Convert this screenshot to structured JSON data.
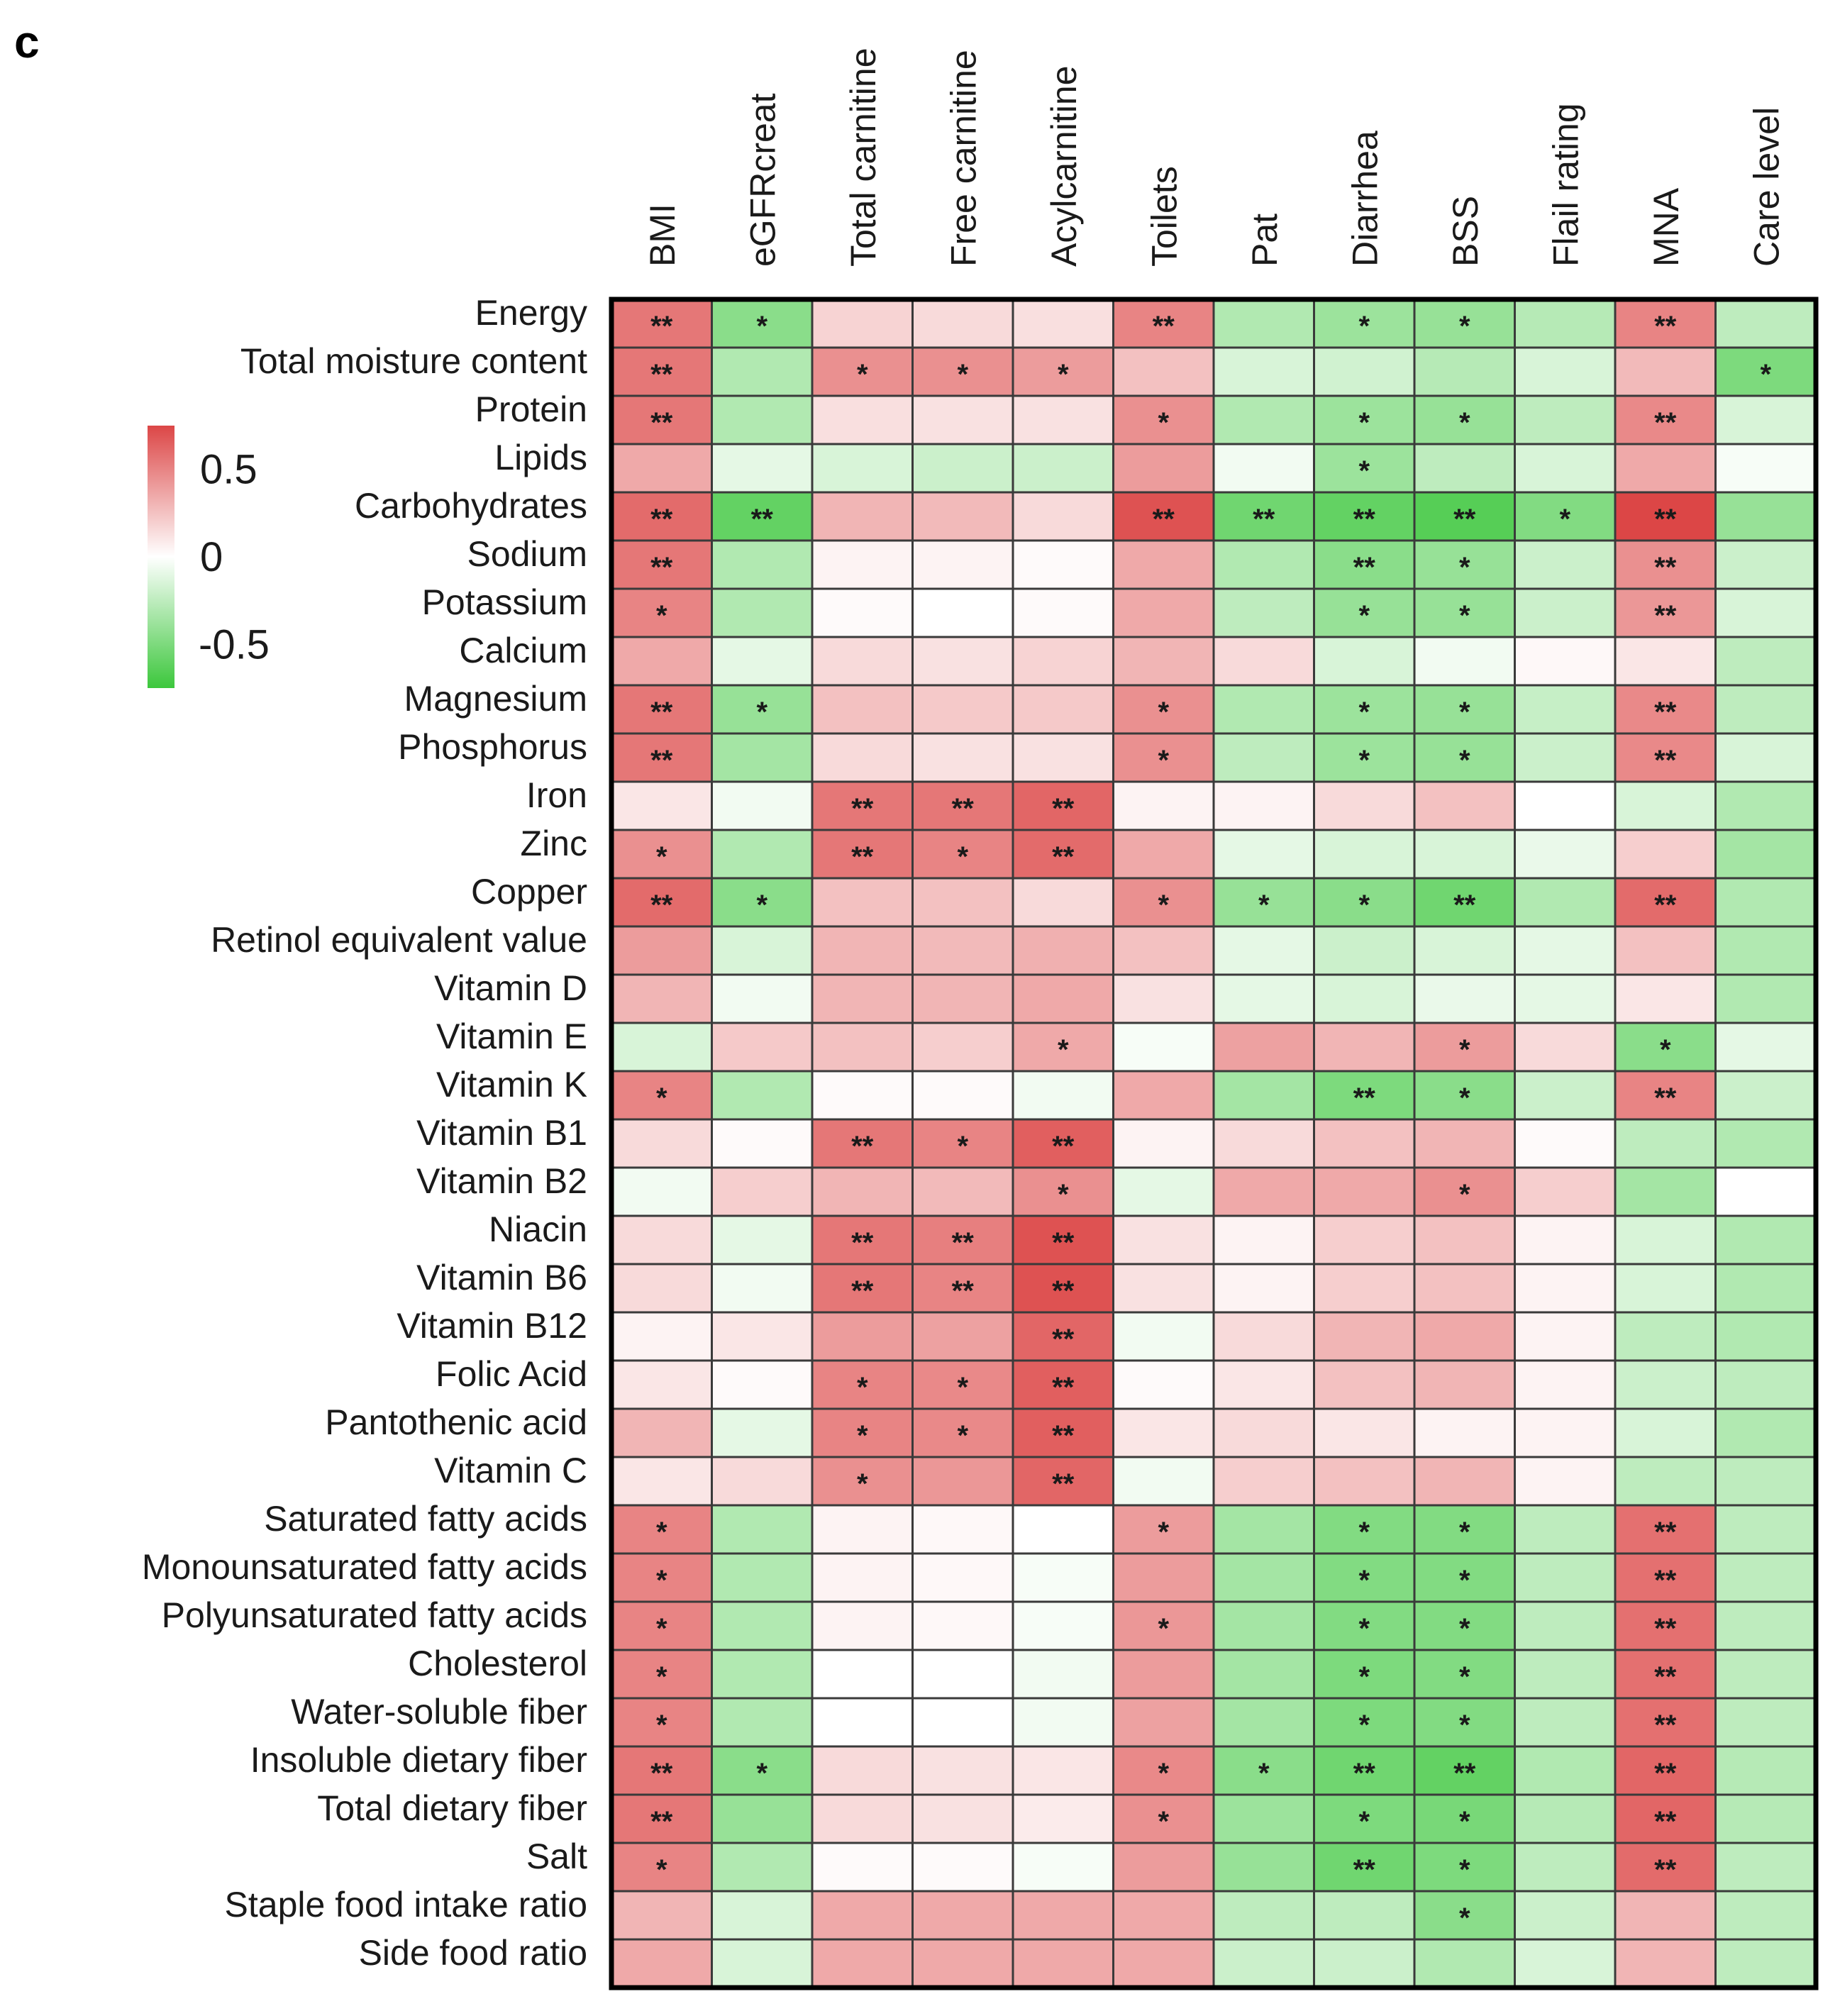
{
  "panel_label": "c",
  "chart_data": {
    "type": "heatmap",
    "title": "",
    "columns": [
      "BMI",
      "eGFRcreat",
      "Total carnitine",
      "Free carnitine",
      "Acylcarnitine",
      "Toilets",
      "Pat",
      "Diarrhea",
      "BSS",
      "Flail rating",
      "MNA",
      "Care level"
    ],
    "rows": [
      "Energy",
      "Total moisture content",
      "Protein",
      "Lipids",
      "Carbohydrates",
      "Sodium",
      "Potassium",
      "Calcium",
      "Magnesium",
      "Phosphorus",
      "Iron",
      "Zinc",
      "Copper",
      "Retinol equivalent value",
      "Vitamin D",
      "Vitamin E",
      "Vitamin K",
      "Vitamin B1",
      "Vitamin B2",
      "Niacin",
      "Vitamin B6",
      "Vitamin B12",
      "Folic Acid",
      "Pantothenic acid",
      "Vitamin C",
      "Saturated fatty acids",
      "Monounsaturated fatty acids",
      "Polyunsaturated fatty acids",
      "Cholesterol",
      "Water-soluble fiber",
      "Insoluble dietary fiber",
      "Total dietary fiber",
      "Salt",
      "Staple food intake ratio",
      "Side food ratio"
    ],
    "values": [
      [
        0.55,
        -0.45,
        0.18,
        0.15,
        0.13,
        0.5,
        -0.3,
        -0.38,
        -0.4,
        -0.28,
        0.5,
        -0.25
      ],
      [
        0.55,
        -0.3,
        0.45,
        0.45,
        0.4,
        0.25,
        -0.15,
        -0.18,
        -0.28,
        -0.15,
        0.28,
        -0.5
      ],
      [
        0.55,
        -0.3,
        0.13,
        0.12,
        0.12,
        0.45,
        -0.3,
        -0.38,
        -0.4,
        -0.25,
        0.48,
        -0.15
      ],
      [
        0.35,
        -0.1,
        -0.15,
        -0.2,
        -0.2,
        0.4,
        -0.05,
        -0.38,
        -0.25,
        -0.15,
        0.35,
        -0.03
      ],
      [
        0.6,
        -0.6,
        0.3,
        0.28,
        0.15,
        0.7,
        -0.55,
        -0.6,
        -0.65,
        -0.48,
        0.75,
        -0.4
      ],
      [
        0.55,
        -0.3,
        0.05,
        0.05,
        0.02,
        0.35,
        -0.3,
        -0.45,
        -0.4,
        -0.2,
        0.45,
        -0.2
      ],
      [
        0.5,
        -0.3,
        0.02,
        0.0,
        0.02,
        0.35,
        -0.25,
        -0.4,
        -0.4,
        -0.2,
        0.42,
        -0.15
      ],
      [
        0.35,
        -0.1,
        0.15,
        0.12,
        0.18,
        0.3,
        0.15,
        -0.15,
        -0.05,
        0.03,
        0.1,
        -0.25
      ],
      [
        0.55,
        -0.4,
        0.25,
        0.22,
        0.22,
        0.45,
        -0.3,
        -0.38,
        -0.4,
        -0.22,
        0.48,
        -0.25
      ],
      [
        0.55,
        -0.35,
        0.15,
        0.12,
        0.12,
        0.45,
        -0.25,
        -0.38,
        -0.4,
        -0.2,
        0.48,
        -0.15
      ],
      [
        0.1,
        -0.05,
        0.55,
        0.55,
        0.62,
        0.05,
        0.05,
        0.15,
        0.25,
        0.0,
        -0.15,
        -0.3
      ],
      [
        0.45,
        -0.3,
        0.55,
        0.5,
        0.6,
        0.35,
        -0.1,
        -0.15,
        -0.15,
        -0.08,
        0.2,
        -0.35
      ],
      [
        0.6,
        -0.45,
        0.25,
        0.25,
        0.15,
        0.45,
        -0.4,
        -0.45,
        -0.55,
        -0.3,
        0.6,
        -0.3
      ],
      [
        0.4,
        -0.15,
        0.3,
        0.28,
        0.32,
        0.25,
        -0.1,
        -0.2,
        -0.15,
        -0.1,
        0.25,
        -0.3
      ],
      [
        0.3,
        -0.05,
        0.3,
        0.3,
        0.35,
        0.12,
        -0.1,
        -0.15,
        -0.08,
        -0.1,
        0.1,
        -0.3
      ],
      [
        -0.15,
        0.22,
        0.25,
        0.2,
        0.35,
        -0.03,
        0.38,
        0.3,
        0.4,
        0.15,
        -0.45,
        -0.1
      ],
      [
        0.5,
        -0.3,
        0.02,
        0.02,
        -0.05,
        0.35,
        -0.35,
        -0.5,
        -0.45,
        -0.2,
        0.5,
        -0.2
      ],
      [
        0.15,
        0.02,
        0.55,
        0.5,
        0.65,
        0.05,
        0.15,
        0.25,
        0.3,
        0.02,
        -0.25,
        -0.3
      ],
      [
        -0.05,
        0.2,
        0.3,
        0.28,
        0.45,
        -0.1,
        0.35,
        0.35,
        0.45,
        0.2,
        -0.35,
        0.0
      ],
      [
        0.15,
        -0.1,
        0.55,
        0.52,
        0.7,
        0.12,
        0.05,
        0.2,
        0.25,
        0.05,
        -0.15,
        -0.3
      ],
      [
        0.15,
        -0.05,
        0.55,
        0.5,
        0.7,
        0.12,
        0.05,
        0.2,
        0.25,
        0.05,
        -0.15,
        -0.3
      ],
      [
        0.05,
        0.1,
        0.4,
        0.38,
        0.62,
        -0.05,
        0.15,
        0.3,
        0.35,
        0.05,
        -0.25,
        -0.3
      ],
      [
        0.1,
        0.02,
        0.5,
        0.48,
        0.65,
        0.02,
        0.1,
        0.25,
        0.3,
        0.05,
        -0.2,
        -0.25
      ],
      [
        0.3,
        -0.1,
        0.5,
        0.48,
        0.65,
        0.1,
        0.15,
        0.1,
        0.05,
        0.05,
        -0.15,
        -0.3
      ],
      [
        0.1,
        0.15,
        0.45,
        0.42,
        0.62,
        -0.05,
        0.2,
        0.25,
        0.3,
        0.05,
        -0.25,
        -0.25
      ],
      [
        0.5,
        -0.3,
        0.05,
        0.03,
        0.0,
        0.4,
        -0.35,
        -0.48,
        -0.48,
        -0.25,
        0.58,
        -0.25
      ],
      [
        0.5,
        -0.3,
        0.05,
        0.03,
        -0.03,
        0.4,
        -0.35,
        -0.48,
        -0.48,
        -0.25,
        0.58,
        -0.25
      ],
      [
        0.5,
        -0.3,
        0.05,
        0.03,
        -0.03,
        0.42,
        -0.35,
        -0.48,
        -0.48,
        -0.25,
        0.58,
        -0.25
      ],
      [
        0.5,
        -0.3,
        0.0,
        0.0,
        -0.05,
        0.4,
        -0.35,
        -0.5,
        -0.48,
        -0.25,
        0.58,
        -0.25
      ],
      [
        0.5,
        -0.3,
        0.0,
        0.0,
        -0.05,
        0.38,
        -0.35,
        -0.5,
        -0.48,
        -0.25,
        0.58,
        -0.25
      ],
      [
        0.55,
        -0.45,
        0.15,
        0.12,
        0.1,
        0.48,
        -0.45,
        -0.55,
        -0.6,
        -0.3,
        0.62,
        -0.28
      ],
      [
        0.55,
        -0.4,
        0.15,
        0.12,
        0.08,
        0.45,
        -0.38,
        -0.5,
        -0.52,
        -0.28,
        0.62,
        -0.28
      ],
      [
        0.5,
        -0.3,
        0.02,
        0.02,
        -0.03,
        0.4,
        -0.4,
        -0.55,
        -0.5,
        -0.25,
        0.6,
        -0.25
      ],
      [
        0.3,
        -0.15,
        0.35,
        0.35,
        0.35,
        0.35,
        -0.25,
        -0.25,
        -0.45,
        -0.2,
        0.3,
        -0.25
      ],
      [
        0.35,
        -0.15,
        0.35,
        0.35,
        0.35,
        0.35,
        -0.2,
        -0.2,
        -0.3,
        -0.15,
        0.3,
        -0.25
      ]
    ],
    "significance": [
      [
        "**",
        "*",
        "",
        "",
        "",
        "**",
        "",
        "*",
        "*",
        "",
        "**",
        ""
      ],
      [
        "**",
        "",
        "*",
        "*",
        "*",
        "",
        "",
        "",
        "",
        "",
        "",
        "*"
      ],
      [
        "**",
        "",
        "",
        "",
        "",
        "*",
        "",
        "*",
        "*",
        "",
        "**",
        ""
      ],
      [
        "",
        "",
        "",
        "",
        "",
        "",
        "",
        "*",
        "",
        "",
        "",
        ""
      ],
      [
        "**",
        "**",
        "",
        "",
        "",
        "**",
        "**",
        "**",
        "**",
        "*",
        "**",
        ""
      ],
      [
        "**",
        "",
        "",
        "",
        "",
        "",
        "",
        "**",
        "*",
        "",
        "**",
        ""
      ],
      [
        "*",
        "",
        "",
        "",
        "",
        "",
        "",
        "*",
        "*",
        "",
        "**",
        ""
      ],
      [
        "",
        "",
        "",
        "",
        "",
        "",
        "",
        "",
        "",
        "",
        "",
        ""
      ],
      [
        "**",
        "*",
        "",
        "",
        "",
        "*",
        "",
        "*",
        "*",
        "",
        "**",
        ""
      ],
      [
        "**",
        "",
        "",
        "",
        "",
        "*",
        "",
        "*",
        "*",
        "",
        "**",
        ""
      ],
      [
        "",
        "",
        "**",
        "**",
        "**",
        "",
        "",
        "",
        "",
        "",
        "",
        ""
      ],
      [
        "*",
        "",
        "**",
        "*",
        "**",
        "",
        "",
        "",
        "",
        "",
        "",
        ""
      ],
      [
        "**",
        "*",
        "",
        "",
        "",
        "*",
        "*",
        "*",
        "**",
        "",
        "**",
        ""
      ],
      [
        "",
        "",
        "",
        "",
        "",
        "",
        "",
        "",
        "",
        "",
        "",
        ""
      ],
      [
        "",
        "",
        "",
        "",
        "",
        "",
        "",
        "",
        "",
        "",
        "",
        ""
      ],
      [
        "",
        "",
        "",
        "",
        "*",
        "",
        "",
        "",
        "*",
        "",
        "*",
        ""
      ],
      [
        "*",
        "",
        "",
        "",
        "",
        "",
        "",
        "**",
        "*",
        "",
        "**",
        ""
      ],
      [
        "",
        "",
        "**",
        "*",
        "**",
        "",
        "",
        "",
        "",
        "",
        "",
        ""
      ],
      [
        "",
        "",
        "",
        "",
        "*",
        "",
        "",
        "",
        "*",
        "",
        "",
        ""
      ],
      [
        "",
        "",
        "**",
        "**",
        "**",
        "",
        "",
        "",
        "",
        "",
        "",
        ""
      ],
      [
        "",
        "",
        "**",
        "**",
        "**",
        "",
        "",
        "",
        "",
        "",
        "",
        ""
      ],
      [
        "",
        "",
        "",
        "",
        "**",
        "",
        "",
        "",
        "",
        "",
        "",
        ""
      ],
      [
        "",
        "",
        "*",
        "*",
        "**",
        "",
        "",
        "",
        "",
        "",
        "",
        ""
      ],
      [
        "",
        "",
        "*",
        "*",
        "**",
        "",
        "",
        "",
        "",
        "",
        "",
        ""
      ],
      [
        "",
        "",
        "*",
        "",
        "**",
        "",
        "",
        "",
        "",
        "",
        "",
        ""
      ],
      [
        "*",
        "",
        "",
        "",
        "",
        "*",
        "",
        "*",
        "*",
        "",
        "**",
        ""
      ],
      [
        "*",
        "",
        "",
        "",
        "",
        "",
        "",
        "*",
        "*",
        "",
        "**",
        ""
      ],
      [
        "*",
        "",
        "",
        "",
        "",
        "*",
        "",
        "*",
        "*",
        "",
        "**",
        ""
      ],
      [
        "*",
        "",
        "",
        "",
        "",
        "",
        "",
        "*",
        "*",
        "",
        "**",
        ""
      ],
      [
        "*",
        "",
        "",
        "",
        "",
        "",
        "",
        "*",
        "*",
        "",
        "**",
        ""
      ],
      [
        "**",
        "*",
        "",
        "",
        "",
        "*",
        "*",
        "**",
        "**",
        "",
        "**",
        ""
      ],
      [
        "**",
        "",
        "",
        "",
        "",
        "*",
        "",
        "*",
        "*",
        "",
        "**",
        ""
      ],
      [
        "*",
        "",
        "",
        "",
        "",
        "",
        "",
        "**",
        "*",
        "",
        "**",
        ""
      ],
      [
        "",
        "",
        "",
        "",
        "",
        "",
        "",
        "",
        "*",
        "",
        "",
        ""
      ],
      [
        "",
        "",
        "",
        "",
        "",
        "",
        "",
        "",
        "",
        "",
        "",
        ""
      ]
    ],
    "color_scale": {
      "min": -0.75,
      "max": 0.75,
      "low_color": "#3cc73c",
      "mid_color": "#ffffff",
      "high_color": "#dc4646",
      "ticks": [
        0.5,
        0,
        -0.5
      ],
      "tick_labels": [
        "0.5",
        "0",
        "-0.5"
      ]
    }
  }
}
